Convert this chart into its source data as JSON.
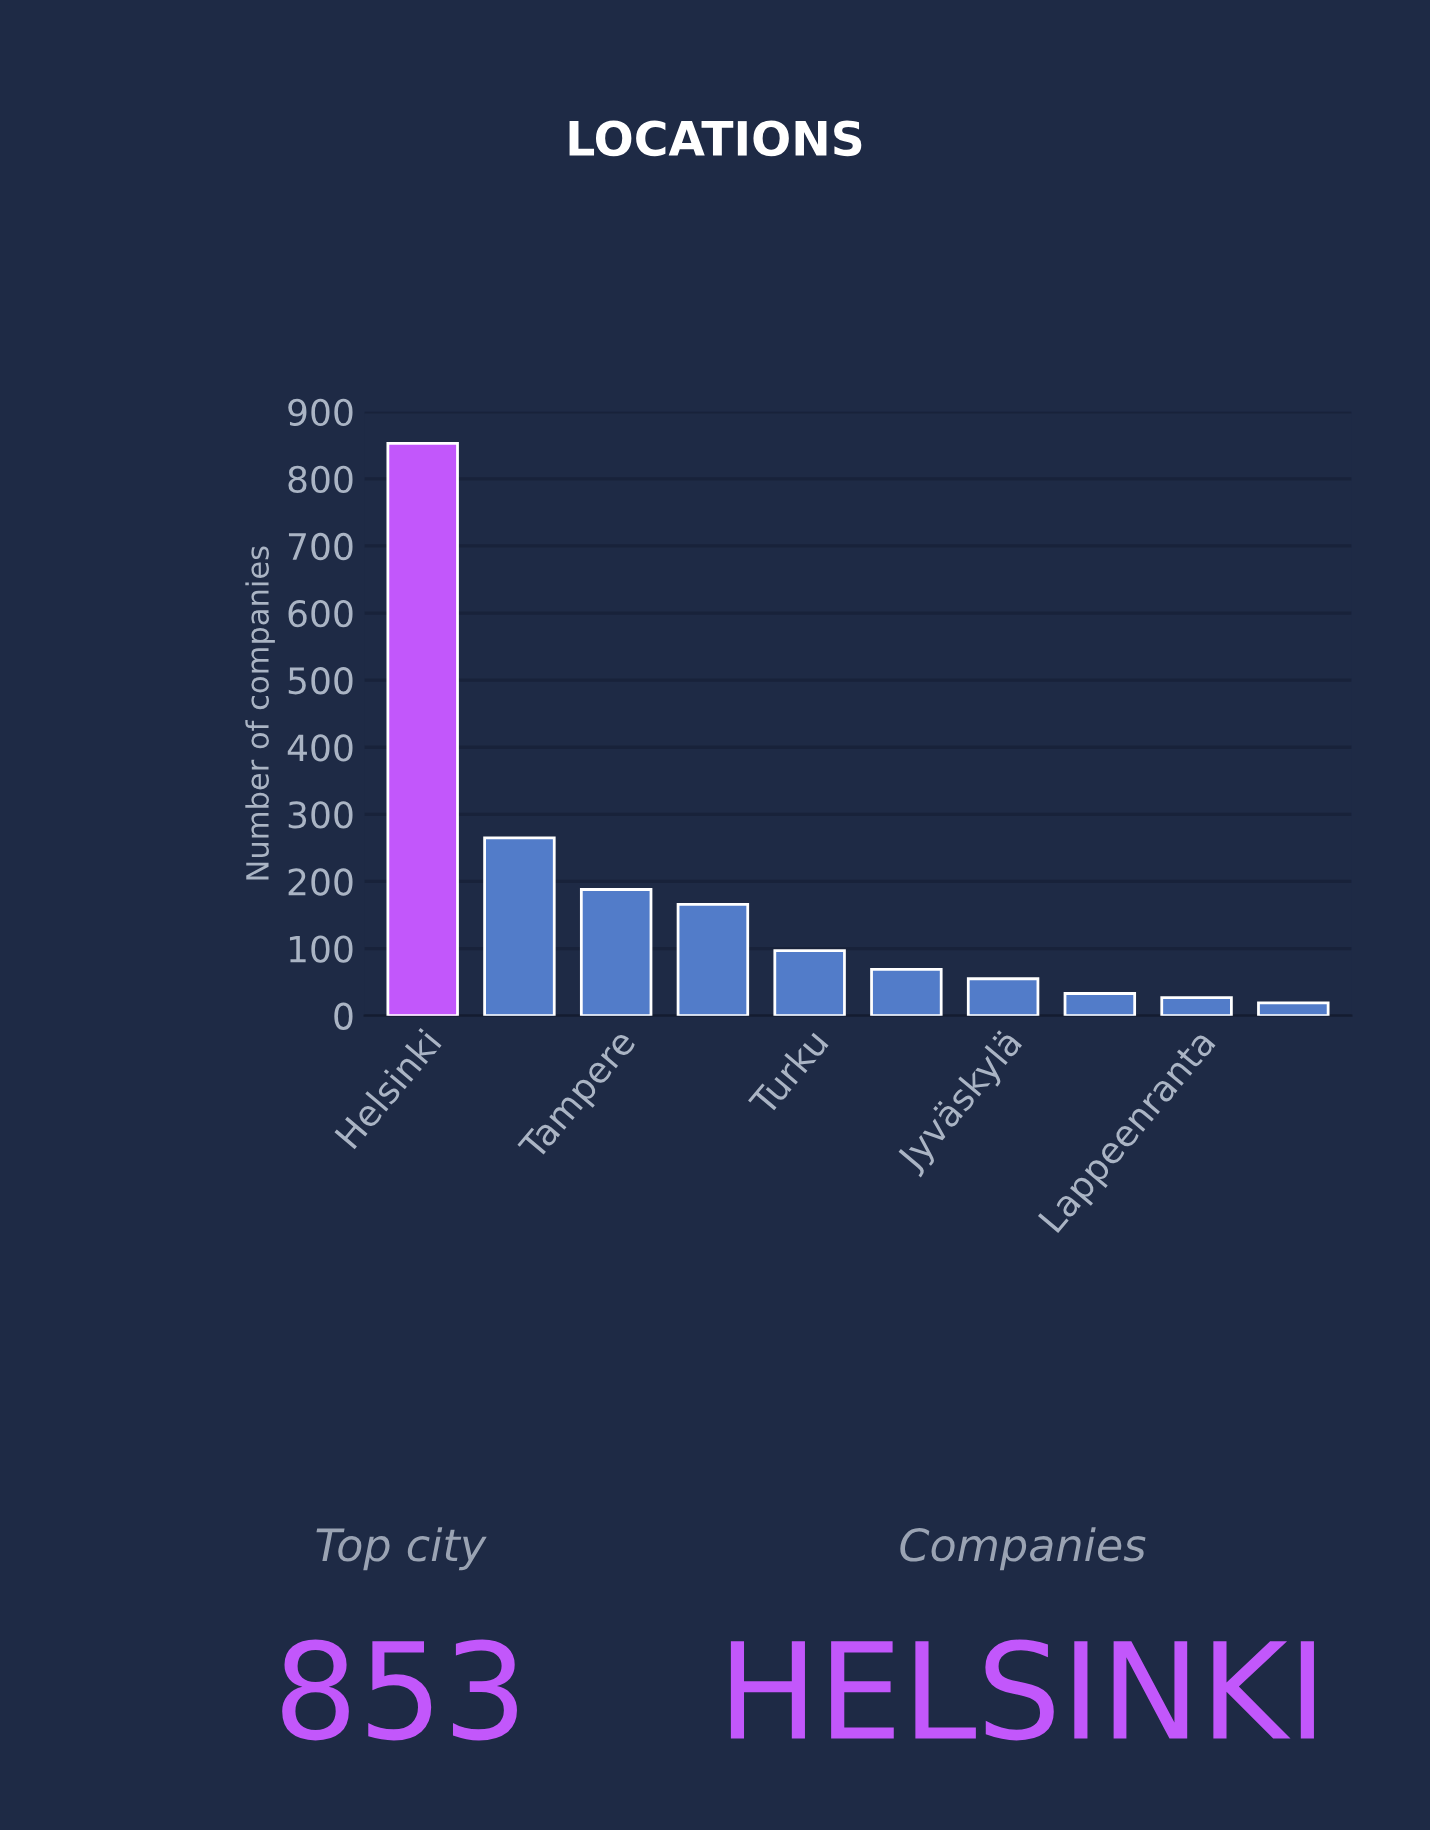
{
  "chart_data": {
    "type": "bar",
    "title": "LOCATIONS",
    "ylabel": "Number of companies",
    "categories": [
      "Helsinki",
      null,
      "Tampere",
      null,
      "Turku",
      null,
      "Jyväskylä",
      null,
      "Lappeenranta",
      null
    ],
    "values": [
      853,
      265,
      188,
      166,
      97,
      69,
      55,
      33,
      27,
      19
    ],
    "colors": [
      "#c257fb",
      "#527cc9",
      "#527cc9",
      "#527cc9",
      "#527cc9",
      "#527cc9",
      "#527cc9",
      "#527cc9",
      "#527cc9",
      "#527cc9"
    ],
    "ylim": [
      0,
      900
    ],
    "yticks": [
      0,
      100,
      200,
      300,
      400,
      500,
      600,
      700,
      800,
      900
    ],
    "grid": "y",
    "legend": false,
    "annotations": [
      "Top city",
      "Companies",
      "853",
      "HELSINKI"
    ]
  }
}
